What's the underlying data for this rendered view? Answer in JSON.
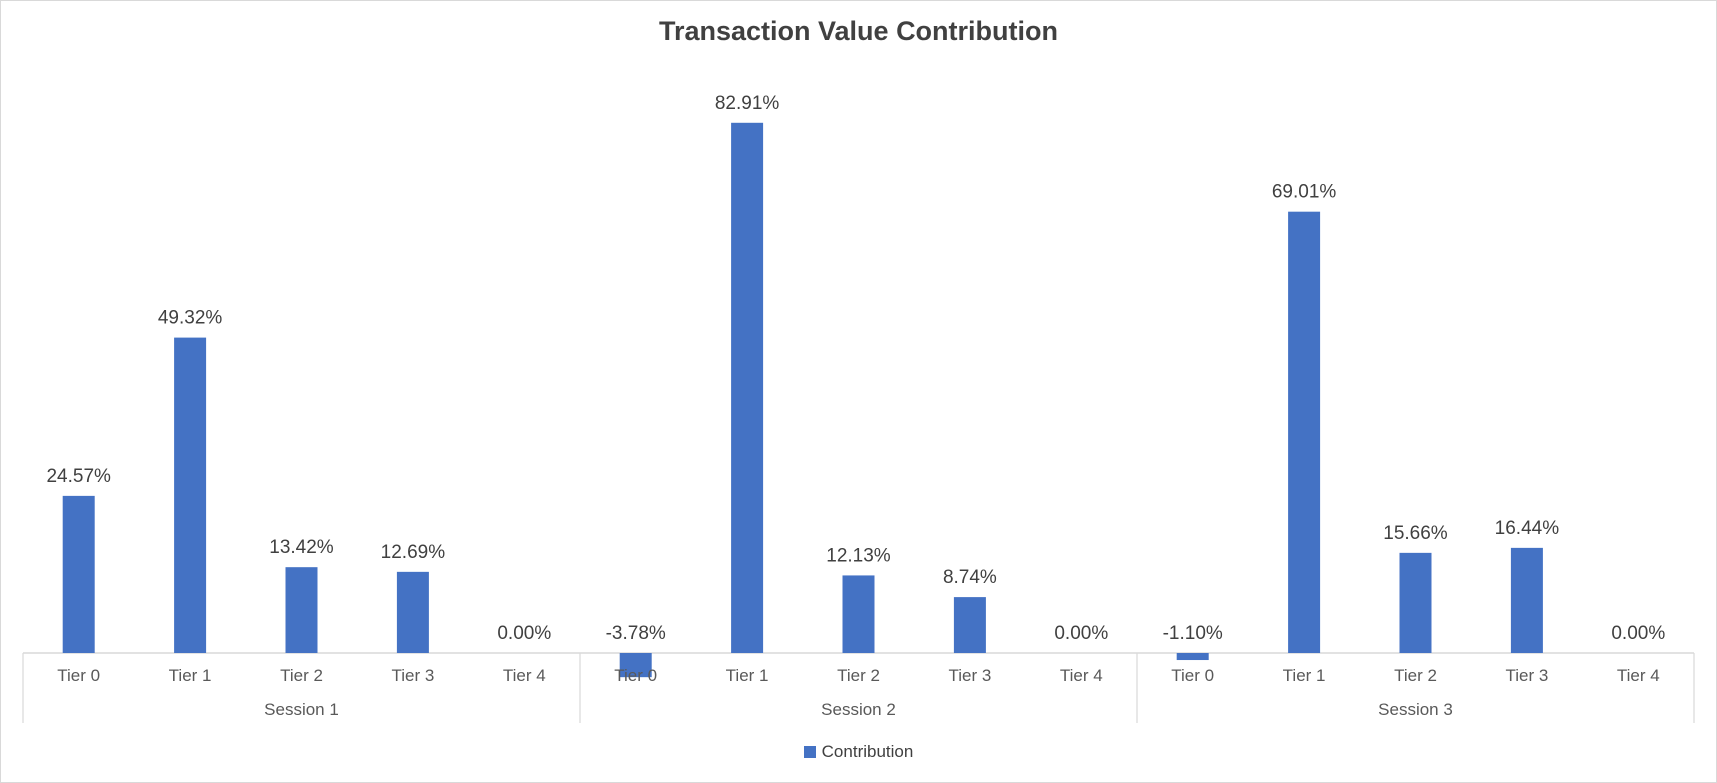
{
  "chart_data": {
    "type": "bar",
    "title": "Transaction Value Contribution",
    "groups": [
      {
        "name": "Session 1",
        "categories": [
          "Tier 0",
          "Tier 1",
          "Tier 2",
          "Tier 3",
          "Tier 4"
        ],
        "values": [
          24.57,
          49.32,
          13.42,
          12.69,
          0.0
        ]
      },
      {
        "name": "Session 2",
        "categories": [
          "Tier 0",
          "Tier 1",
          "Tier 2",
          "Tier 3",
          "Tier 4"
        ],
        "values": [
          -3.78,
          82.91,
          12.13,
          8.74,
          0.0
        ]
      },
      {
        "name": "Session 3",
        "categories": [
          "Tier 0",
          "Tier 1",
          "Tier 2",
          "Tier 3",
          "Tier 4"
        ],
        "values": [
          -1.1,
          69.01,
          15.66,
          16.44,
          0.0
        ]
      }
    ],
    "series": [
      {
        "name": "Contribution",
        "color": "#4472C4"
      }
    ],
    "value_format": "percent_2dp",
    "ylim": [
      -4,
      90
    ],
    "legend_position": "bottom",
    "grid": false
  }
}
